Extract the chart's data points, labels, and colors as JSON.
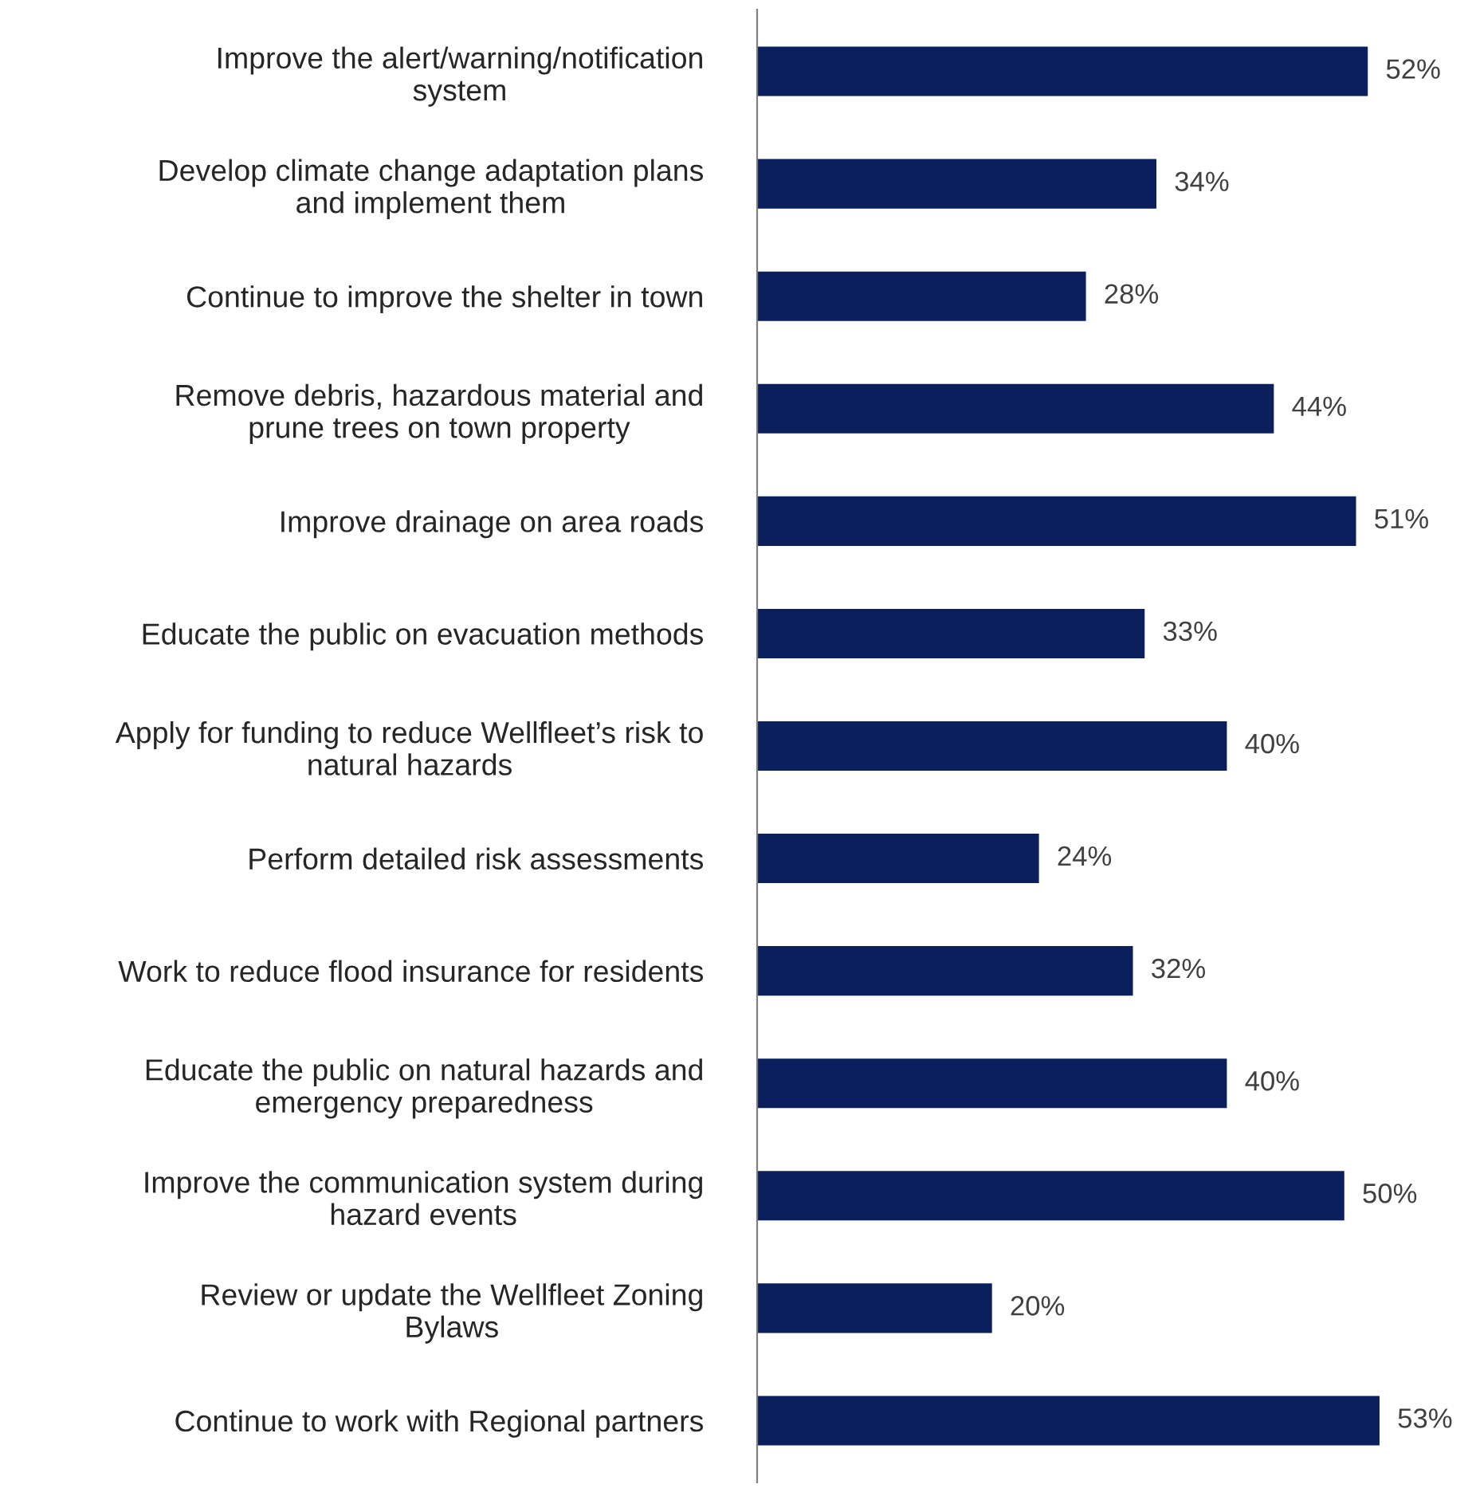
{
  "chart_data": {
    "type": "bar",
    "orientation": "horizontal",
    "data_labels": true,
    "categories": [
      "Improve the alert/warning/notification\nsystem",
      "Develop climate change adaptation plans\nand implement them",
      "Continue to improve the shelter in town",
      "Remove debris, hazardous material and\nprune trees on town property",
      "Improve drainage on area roads",
      "Educate the public on evacuation methods",
      "Apply for funding to reduce Wellfleet’s risk to\nnatural hazards",
      "Perform detailed risk assessments",
      "Work to reduce flood insurance for residents",
      "Educate the public on natural hazards and\nemergency preparedness",
      "Improve the communication system during\nhazard events",
      "Review or update the Wellfleet Zoning\nBylaws",
      "Continue to work with Regional partners"
    ],
    "values": [
      52,
      34,
      28,
      44,
      51,
      33,
      40,
      24,
      32,
      40,
      50,
      20,
      53
    ],
    "value_labels": [
      "52%",
      "34%",
      "28%",
      "44%",
      "51%",
      "33%",
      "40%",
      "24%",
      "32%",
      "40%",
      "50%",
      "20%",
      "53%"
    ],
    "color": "#0b1f5c",
    "grid": false
  }
}
